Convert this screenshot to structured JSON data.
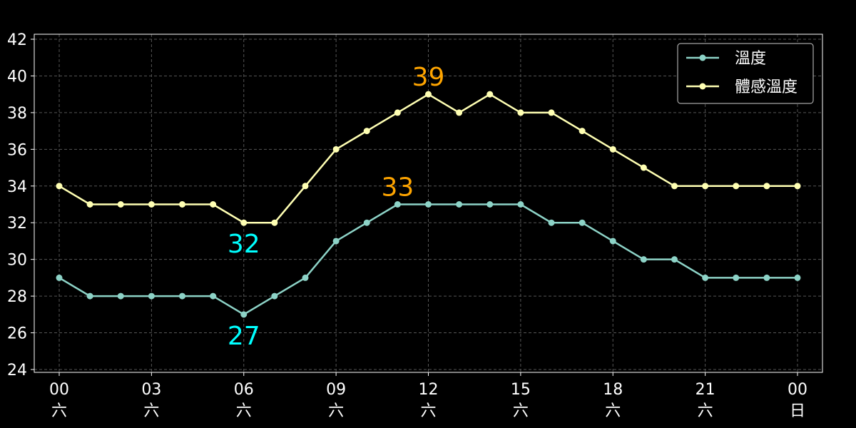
{
  "chart_data": {
    "type": "line",
    "x_tick_labels": [
      {
        "hour": "00",
        "day": "六"
      },
      {
        "hour": "03",
        "day": "六"
      },
      {
        "hour": "06",
        "day": "六"
      },
      {
        "hour": "09",
        "day": "六"
      },
      {
        "hour": "12",
        "day": "六"
      },
      {
        "hour": "15",
        "day": "六"
      },
      {
        "hour": "18",
        "day": "六"
      },
      {
        "hour": "21",
        "day": "六"
      },
      {
        "hour": "00",
        "day": "日"
      }
    ],
    "x_hours": [
      0,
      1,
      2,
      3,
      4,
      5,
      6,
      7,
      8,
      9,
      10,
      11,
      12,
      13,
      14,
      15,
      16,
      17,
      18,
      19,
      20,
      21,
      22,
      23,
      24
    ],
    "ylim": [
      24,
      42
    ],
    "y_ticks": [
      24,
      26,
      28,
      30,
      32,
      34,
      36,
      38,
      40,
      42
    ],
    "grid": true,
    "legend_position": "top-right",
    "series": [
      {
        "name": "溫度",
        "color": "#8dd3c7",
        "values": [
          29,
          28,
          28,
          28,
          28,
          28,
          27,
          28,
          29,
          31,
          32,
          33,
          33,
          33,
          33,
          33,
          32,
          32,
          31,
          30,
          30,
          29,
          29,
          29,
          29
        ]
      },
      {
        "name": "體感溫度",
        "color": "#ffffb3",
        "values": [
          34,
          33,
          33,
          33,
          33,
          33,
          32,
          32,
          34,
          36,
          37,
          38,
          39,
          38,
          39,
          38,
          38,
          37,
          36,
          35,
          34,
          34,
          34,
          34,
          34
        ]
      }
    ],
    "annotations": [
      {
        "text": "39",
        "x": 12,
        "y": 39,
        "color": "#ffa500",
        "position": "above"
      },
      {
        "text": "33",
        "x": 11,
        "y": 33,
        "color": "#ffa500",
        "position": "above"
      },
      {
        "text": "32",
        "x": 6,
        "y": 32,
        "color": "#00ffff",
        "position": "below"
      },
      {
        "text": "27",
        "x": 6,
        "y": 27,
        "color": "#00ffff",
        "position": "below"
      }
    ]
  }
}
